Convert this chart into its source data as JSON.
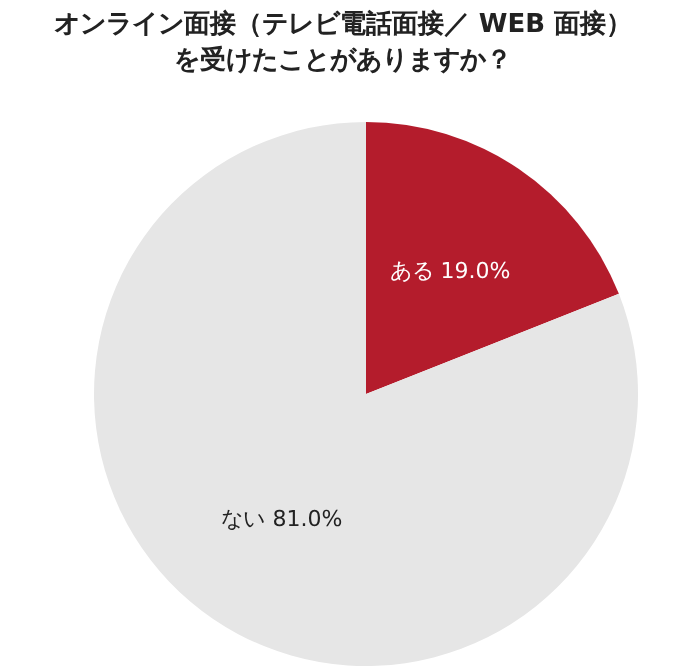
{
  "chart_data": {
    "type": "pie",
    "title": "オンライン面接（テレビ電話面接／ WEB 面接）を受けたことがありますか？",
    "categories": [
      "ある",
      "ない"
    ],
    "values": [
      19.0,
      81.0
    ],
    "colors": [
      "#b41c2c",
      "#e6e6e6"
    ],
    "value_labels": [
      "19.0%",
      "81.0%"
    ]
  }
}
